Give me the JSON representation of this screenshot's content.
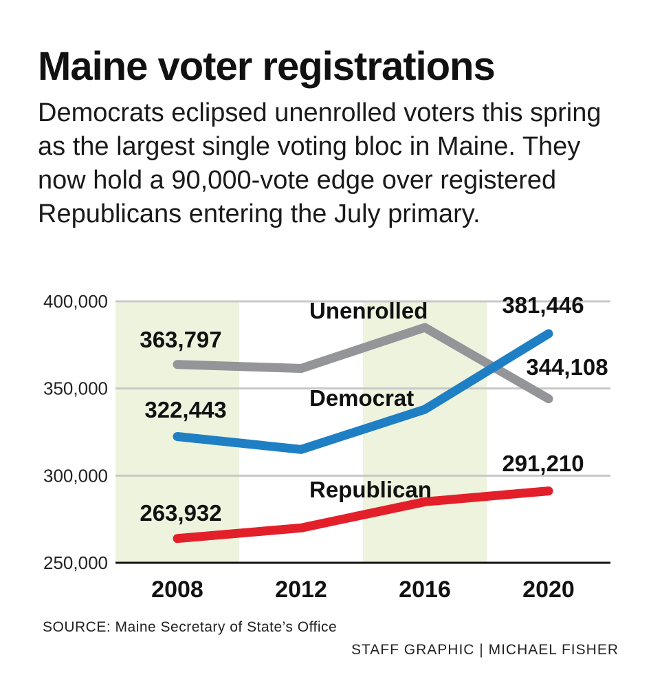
{
  "title": "Maine voter registrations",
  "subtitle": "Democrats eclipsed unenrolled voters this spring as the largest single voting bloc in Maine. They now hold a 90,000-vote edge over registered Republicans entering the July primary.",
  "source": "SOURCE: Maine Secretary of State’s Office",
  "credit": "STAFF GRAPHIC | MICHAEL FISHER",
  "chart_data": {
    "type": "line",
    "x": [
      "2008",
      "2012",
      "2016",
      "2020"
    ],
    "ylim": [
      250000,
      400000
    ],
    "yticks": [
      250000,
      300000,
      350000,
      400000
    ],
    "ytick_labels": [
      "250,000",
      "300,000",
      "350,000",
      "400,000"
    ],
    "grid": true,
    "shaded_bands": [
      "2008",
      "2016"
    ],
    "band_color": "#eef3de",
    "series": [
      {
        "name": "Unenrolled",
        "values": [
          363797,
          361500,
          385000,
          344108
        ],
        "color": "#939598",
        "point_labels": [
          "363,797",
          "",
          "",
          "344,108"
        ]
      },
      {
        "name": "Democrat",
        "values": [
          322443,
          315000,
          338000,
          381446
        ],
        "color": "#1f7fc4",
        "point_labels": [
          "322,443",
          "",
          "",
          "381,446"
        ]
      },
      {
        "name": "Republican",
        "values": [
          263932,
          270000,
          285000,
          291210
        ],
        "color": "#e3202a",
        "point_labels": [
          "263,932",
          "",
          "",
          "291,210"
        ]
      }
    ]
  }
}
